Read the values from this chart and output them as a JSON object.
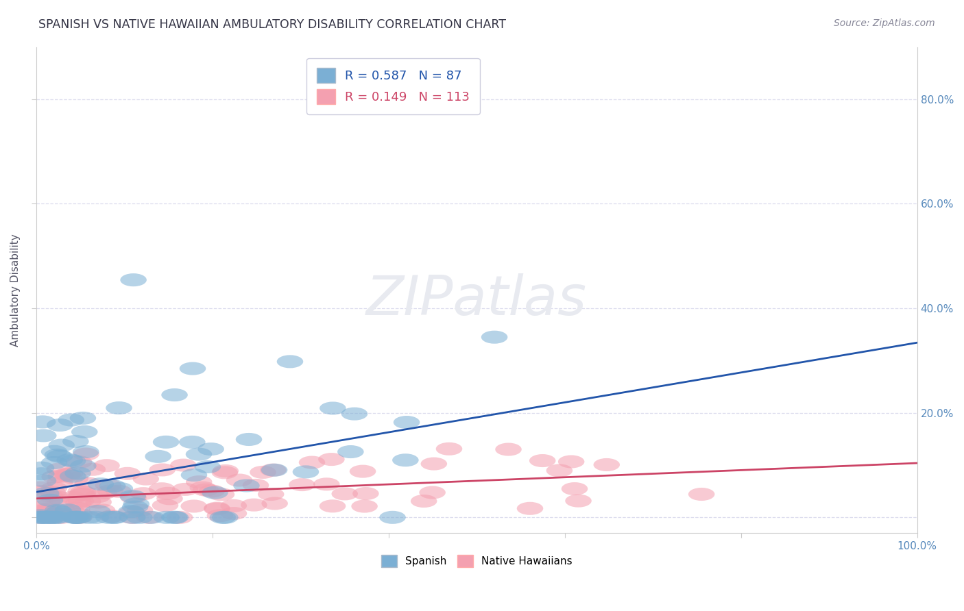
{
  "title": "SPANISH VS NATIVE HAWAIIAN AMBULATORY DISABILITY CORRELATION CHART",
  "source": "Source: ZipAtlas.com",
  "ylabel": "Ambulatory Disability",
  "xlim": [
    0,
    1.0
  ],
  "ylim": [
    -0.03,
    0.9
  ],
  "spanish_R": 0.587,
  "spanish_N": 87,
  "hawaiian_R": 0.149,
  "hawaiian_N": 113,
  "blue_color": "#7BAFD4",
  "pink_color": "#F4A0B0",
  "blue_line_color": "#2255AA",
  "pink_line_color": "#CC4466",
  "background_color": "#FFFFFF",
  "title_color": "#333344",
  "axis_label_color": "#555566",
  "tick_color": "#5588BB",
  "grid_color": "#DDDDEE",
  "watermark_color": "#DDDDEE"
}
